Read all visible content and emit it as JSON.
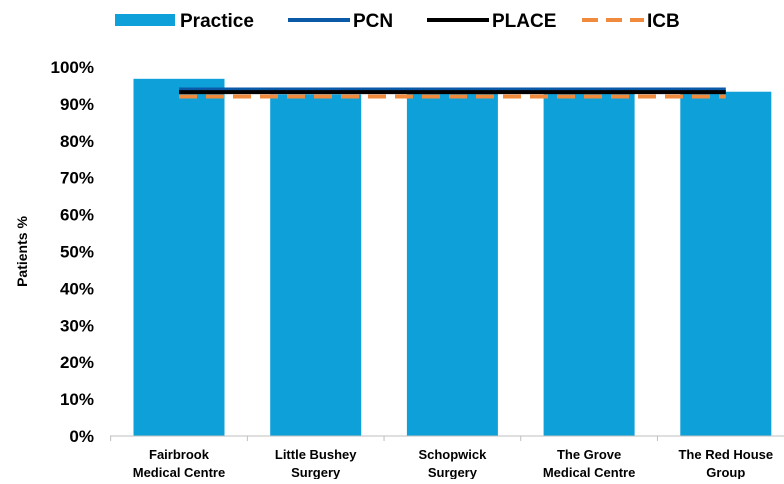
{
  "chart_data": {
    "type": "bar",
    "title": "",
    "xlabel": "",
    "ylabel": "Patients %",
    "ylim": [
      0,
      100
    ],
    "yticks": [
      0,
      10,
      20,
      30,
      40,
      50,
      60,
      70,
      80,
      90,
      100
    ],
    "ytick_labels": [
      "0%",
      "10%",
      "20%",
      "30%",
      "40%",
      "50%",
      "60%",
      "70%",
      "80%",
      "90%",
      "100%"
    ],
    "categories": [
      [
        "Fairbrook",
        "Medical Centre"
      ],
      [
        "Little Bushey",
        "Surgery"
      ],
      [
        "Schopwick",
        "Surgery"
      ],
      [
        "The Grove",
        "Medical Centre"
      ],
      [
        "The Red House",
        "Group"
      ]
    ],
    "grid": false,
    "legend_position": "top",
    "series": [
      {
        "name": "Practice",
        "kind": "bar",
        "color": "#0ea0d8",
        "values": [
          96.8,
          92.6,
          93.0,
          92.8,
          93.3
        ]
      },
      {
        "name": "PCN",
        "kind": "line",
        "color": "#0b5aa8",
        "value": 93.9
      },
      {
        "name": "PLACE",
        "kind": "line",
        "color": "#000000",
        "value": 93.2
      },
      {
        "name": "ICB",
        "kind": "dashed-line",
        "color": "#f08a3c",
        "value": 92.0
      }
    ]
  }
}
